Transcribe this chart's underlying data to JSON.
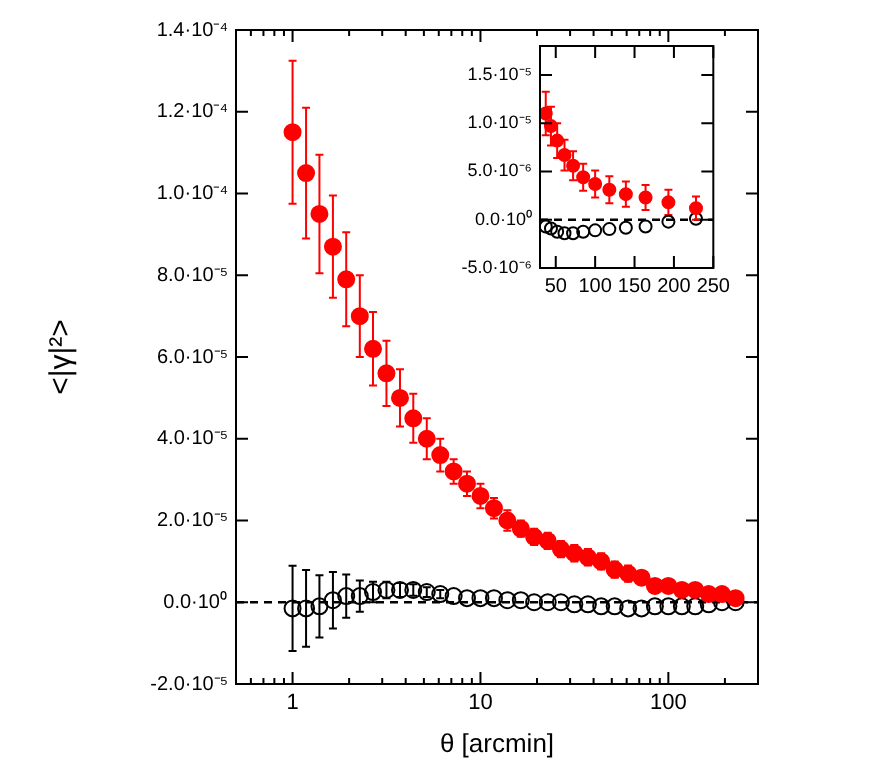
{
  "chart_data": [
    {
      "type": "scatter",
      "xlabel": "θ [arcmin]",
      "ylabel": "<|γ|²>",
      "log": "x",
      "grid": false,
      "legend": false,
      "marker": "circle",
      "x": [
        1,
        1.18,
        1.39,
        1.64,
        1.93,
        2.28,
        2.68,
        3.16,
        3.73,
        4.39,
        5.18,
        6.11,
        7.2,
        8.48,
        10,
        11.8,
        13.9,
        16.4,
        19.3,
        22.8,
        26.8,
        31.6,
        37.3,
        43.9,
        51.8,
        61.1,
        72,
        84.8,
        100,
        118,
        139,
        164,
        193,
        228
      ],
      "series": [
        {
          "color": "#ff0000",
          "values": [
            0.000115,
            0.000105,
            9.5e-05,
            8.7e-05,
            7.9e-05,
            7e-05,
            6.2e-05,
            5.6e-05,
            5e-05,
            4.5e-05,
            4e-05,
            3.6e-05,
            3.2e-05,
            2.9e-05,
            2.6e-05,
            2.3e-05,
            2e-05,
            1.8e-05,
            1.6e-05,
            1.5e-05,
            1.3e-05,
            1.2e-05,
            1.1e-05,
            1e-05,
            8e-06,
            7e-06,
            6e-06,
            4e-06,
            4e-06,
            3e-06,
            3e-06,
            2e-06,
            2e-06,
            1e-06
          ],
          "errors": [
            1.75e-05,
            1.6e-05,
            1.45e-05,
            1.25e-05,
            1.15e-05,
            1e-05,
            9e-06,
            8e-06,
            7e-06,
            6e-06,
            5e-06,
            4e-06,
            3e-06,
            3e-06,
            3e-06,
            2.5e-06,
            2.5e-06,
            2e-06,
            2e-06,
            2e-06,
            2e-06,
            2e-06,
            2e-06,
            2e-06,
            2e-06,
            2e-06,
            null,
            null,
            null,
            null,
            null,
            null,
            null,
            null
          ]
        },
        {
          "color": "#000000",
          "values": [
            -1.5e-06,
            -1.5e-06,
            -1e-06,
            5e-07,
            1.5e-06,
            1.5e-06,
            2.5e-06,
            3e-06,
            3e-06,
            3e-06,
            2.5e-06,
            2e-06,
            1.5e-06,
            1e-06,
            1e-06,
            1e-06,
            5e-07,
            5e-07,
            0,
            0,
            0,
            -5e-07,
            -5e-07,
            -1e-06,
            -1e-06,
            -1.5e-06,
            -1.5e-06,
            -1e-06,
            -1e-06,
            -1e-06,
            -1e-06,
            -5e-07,
            0,
            0
          ],
          "errors": [
            1.04e-05,
            9.4e-06,
            7.6e-06,
            6.9e-06,
            5.3e-06,
            3.8e-06,
            2.5e-06,
            2e-06,
            1.7e-06,
            1.4e-06,
            1.2e-06,
            1e-06,
            null,
            null,
            null,
            null,
            null,
            null,
            null,
            null,
            null,
            null,
            null,
            null,
            null,
            null,
            null,
            null,
            null,
            null,
            null,
            null,
            null,
            null
          ]
        }
      ],
      "xlim": [
        0.5,
        300
      ],
      "xticks": [
        {
          "value": 0.6,
          "label": null
        },
        {
          "value": 0.7,
          "label": null
        },
        {
          "value": 0.8,
          "label": null
        },
        {
          "value": 0.9,
          "label": null
        },
        1,
        {
          "value": 2,
          "label": null
        },
        {
          "value": 3,
          "label": null
        },
        {
          "value": 4,
          "label": null
        },
        {
          "value": 5,
          "label": null
        },
        {
          "value": 6,
          "label": null
        },
        {
          "value": 7,
          "label": null
        },
        {
          "value": 8,
          "label": null
        },
        {
          "value": 9,
          "label": null
        },
        10,
        {
          "value": 20,
          "label": null
        },
        {
          "value": 30,
          "label": null
        },
        {
          "value": 40,
          "label": null
        },
        {
          "value": 50,
          "label": null
        },
        {
          "value": 60,
          "label": null
        },
        {
          "value": 70,
          "label": null
        },
        {
          "value": 80,
          "label": null
        },
        {
          "value": 90,
          "label": null
        },
        100,
        {
          "value": 200,
          "label": null
        }
      ],
      "ylim": [
        -2e-05,
        0.00014
      ],
      "yticks": [
        {
          "value": -2e-05,
          "label": "-2.0·10⁻⁵"
        },
        {
          "value": 0,
          "label": "0.0·10⁰"
        },
        {
          "value": 2e-05,
          "label": "2.0·10⁻⁵"
        },
        {
          "value": 4e-05,
          "label": "4.0·10⁻⁵"
        },
        {
          "value": 6e-05,
          "label": "6.0·10⁻⁵"
        },
        {
          "value": 8e-05,
          "label": "8.0·10⁻⁵"
        },
        {
          "value": 0.0001,
          "label": "1.0·10⁻⁴"
        },
        {
          "value": 0.00012,
          "label": "1.2·10⁻⁴"
        },
        {
          "value": 0.00014,
          "label": "1.4·10⁻⁴"
        }
      ],
      "ref_lines": [
        {
          "axis": "y",
          "value": 0,
          "color": "#000000",
          "line_style": "dashed"
        }
      ]
    },
    {
      "type": "scatter",
      "grid": false,
      "legend": false,
      "marker": "circle",
      "x": [
        37.3,
        43.9,
        51.8,
        61.1,
        72,
        84.8,
        100,
        118,
        139,
        164,
        193,
        228
      ],
      "series": [
        {
          "color": "#ff0000",
          "values": [
            1.1e-05,
            9.7e-06,
            8.2e-06,
            6.7e-06,
            5.6e-06,
            4.4e-06,
            3.7e-06,
            3.1e-06,
            2.65e-06,
            2.3e-06,
            1.8e-06,
            1.2e-06
          ],
          "errors": [
            2.25e-06,
            2e-06,
            1.8e-06,
            1.6e-06,
            1.5e-06,
            1.4e-06,
            1.4e-06,
            1.4e-06,
            1.3e-06,
            1.3e-06,
            1.3e-06,
            1.2e-06
          ]
        },
        {
          "color": "#000000",
          "values": [
            -7e-07,
            -9e-07,
            -1.25e-06,
            -1.4e-06,
            -1.4e-06,
            -1.25e-06,
            -1.1e-06,
            -9.7e-07,
            -8.3e-07,
            -7e-07,
            -2e-07,
            1e-07
          ]
        }
      ],
      "xlim": [
        30,
        250
      ],
      "xticks": [
        50,
        100,
        150,
        200,
        250
      ],
      "ylim": [
        -5e-06,
        1.8e-05
      ],
      "yticks": [
        {
          "value": -5e-06,
          "label": "-5.0·10⁻⁶"
        },
        {
          "value": 0,
          "label": "0.0·10⁰"
        },
        {
          "value": 5e-06,
          "label": "5.0·10⁻⁶"
        },
        {
          "value": 1e-05,
          "label": "1.0·10⁻⁵"
        },
        {
          "value": 1.5e-05,
          "label": "1.5·10⁻⁵"
        }
      ],
      "ref_lines": [
        {
          "axis": "y",
          "value": 0,
          "color": "#000000",
          "line_style": "dashed"
        }
      ]
    }
  ]
}
